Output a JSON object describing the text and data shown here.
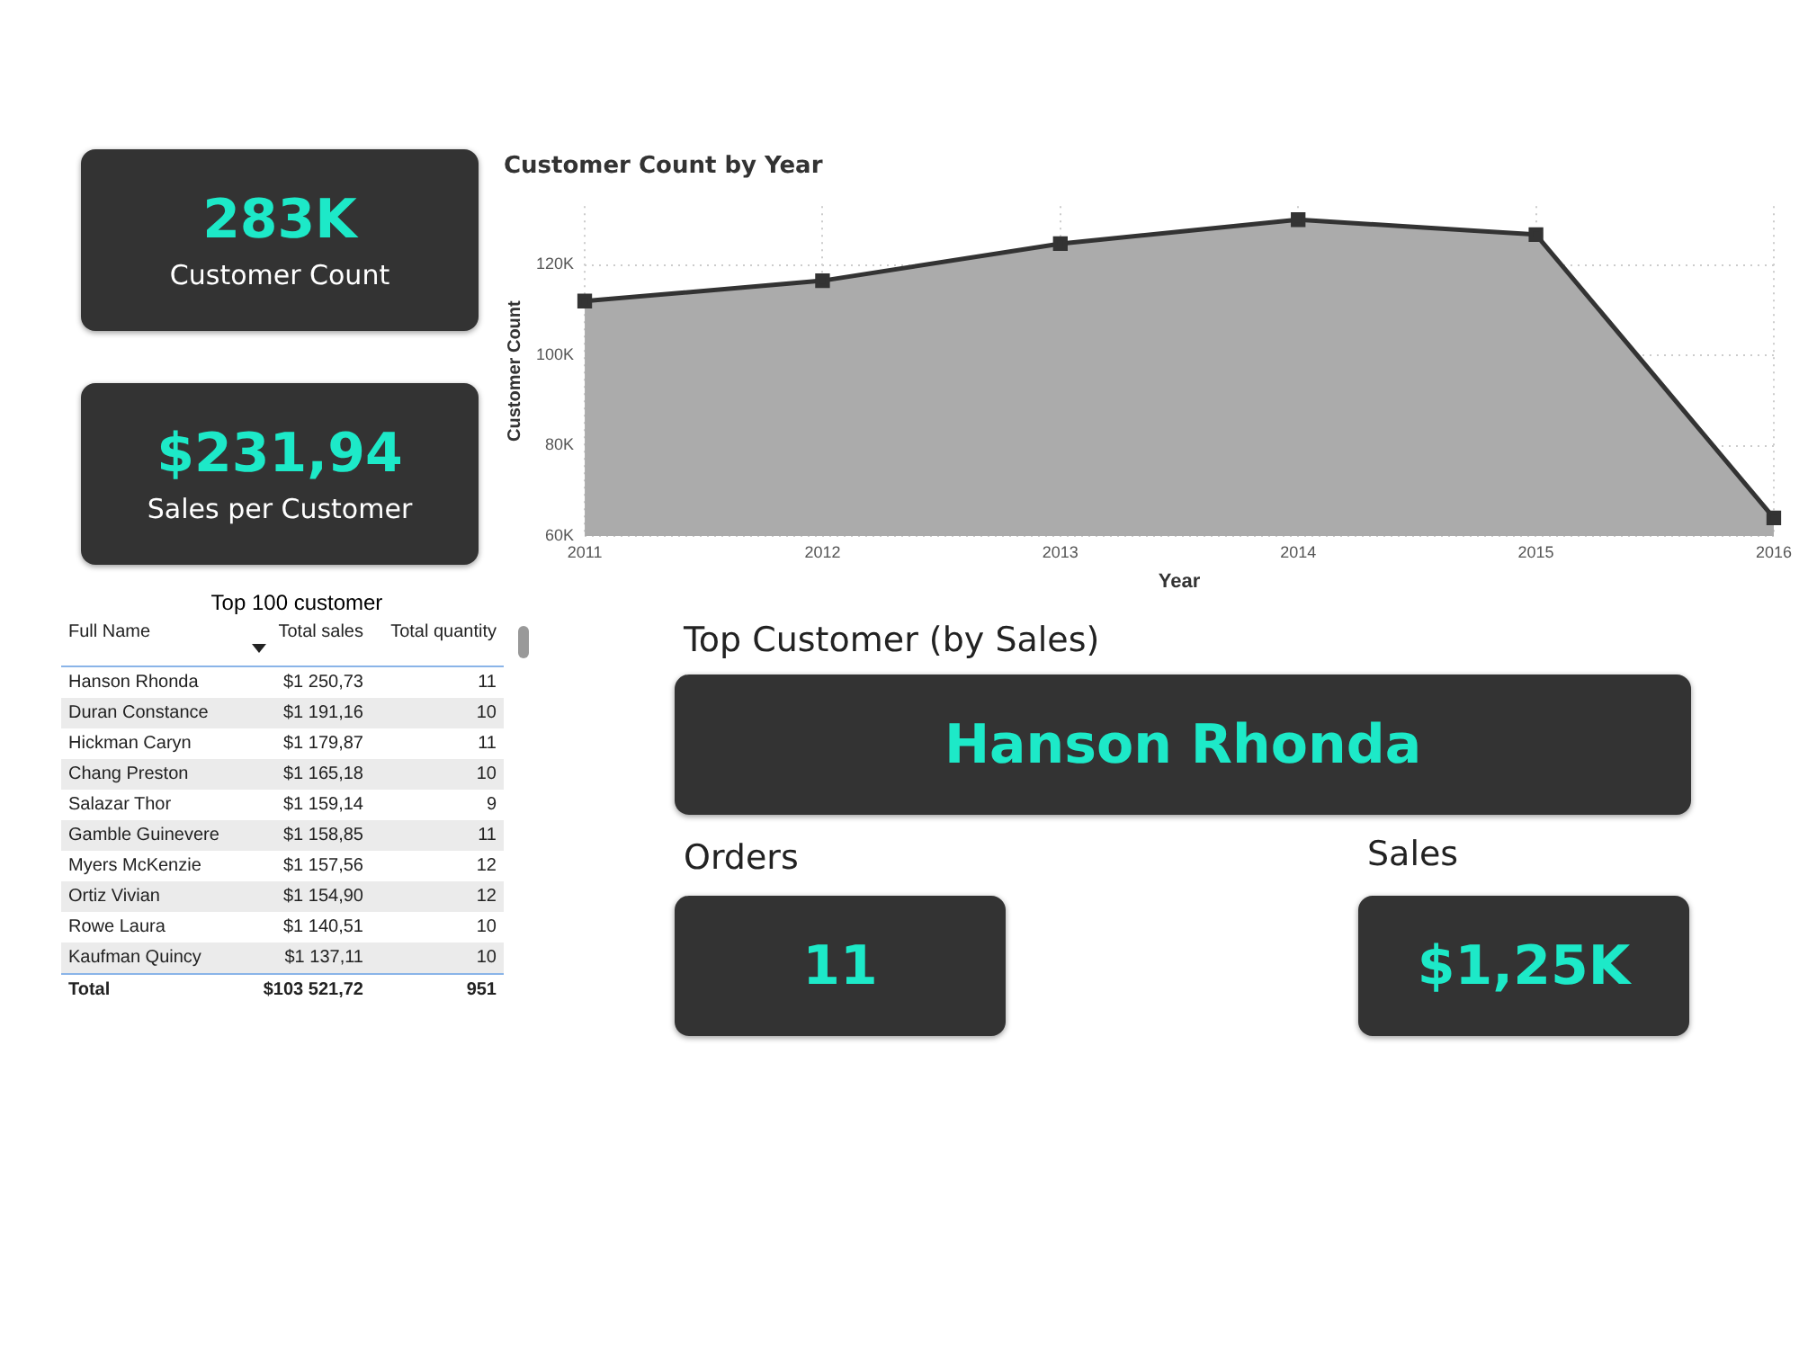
{
  "chart_data": [
    {
      "type": "other",
      "title": "Customer Count",
      "annotations": [
        "283K"
      ]
    },
    {
      "type": "area",
      "title": "Customer Count by Year",
      "xlabel": "Year",
      "ylabel": "Customer Count",
      "categories": [
        "2011",
        "2012",
        "2013",
        "2014",
        "2015",
        "2016"
      ],
      "series": [
        {
          "color": "#333333",
          "values": [
            112000,
            116500,
            124700,
            130000,
            126700,
            64000
          ]
        }
      ],
      "ylim": [
        60000,
        133000
      ],
      "yticks": [
        {
          "value": 60000,
          "label": "60K"
        },
        {
          "value": 80000,
          "label": "80K"
        },
        {
          "value": 100000,
          "label": "100K"
        },
        {
          "value": 120000,
          "label": "120K"
        }
      ],
      "grid": true,
      "legend": false,
      "marker": "square",
      "line_style": "solid"
    },
    {
      "type": "other",
      "title": "Sales per Customer",
      "annotations": [
        "$231,94"
      ]
    },
    {
      "type": "other",
      "title": "Top 100 customer",
      "xlabel": "Full Name",
      "categories": [
        "Hanson Rhonda",
        "Duran Constance",
        "Hickman Caryn",
        "Chang Preston",
        "Salazar Thor",
        "Gamble Guinevere",
        "Myers McKenzie",
        "Ortiz Vivian",
        "Rowe Laura",
        "Kaufman Quincy"
      ],
      "series": [
        {
          "name": "Total sales",
          "values": [
            1250.73,
            1191.16,
            1179.87,
            1165.18,
            1159.14,
            1158.85,
            1157.56,
            1154.9,
            1140.51,
            1137.11
          ],
          "value_labels": [
            "$1 250,73",
            "$1 191,16",
            "$1 179,87",
            "$1 165,18",
            "$1 159,14",
            "$1 158,85",
            "$1 157,56",
            "$1 154,90",
            "$1 140,51",
            "$1 137,11"
          ]
        },
        {
          "name": "Total quantity",
          "values": [
            11,
            10,
            11,
            10,
            9,
            11,
            12,
            12,
            10,
            10
          ],
          "value_labels": [
            "11",
            "10",
            "11",
            "10",
            "9",
            "11",
            "12",
            "12",
            "10",
            "10"
          ]
        }
      ],
      "totals": [
        "$103 521,72",
        "951"
      ],
      "annotations": [
        "Total"
      ]
    },
    {
      "type": "other",
      "title": "Top Customer (by Sales)",
      "annotations": [
        "Hanson Rhonda"
      ]
    },
    {
      "type": "other",
      "title": "Orders",
      "annotations": [
        "11"
      ]
    },
    {
      "type": "other",
      "title": "Sales",
      "annotations": [
        "$1,25K"
      ]
    }
  ]
}
